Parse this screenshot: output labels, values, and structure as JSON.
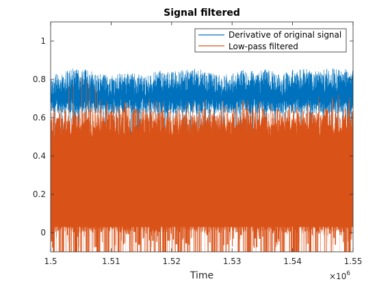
{
  "chart_data": {
    "type": "line",
    "title": "Signal filtered",
    "xlabel": "Time",
    "ylabel": "",
    "xlim": [
      1500000,
      1550000
    ],
    "ylim": [
      -0.1,
      1.1
    ],
    "x_ticks": [
      1500000,
      1510000,
      1520000,
      1530000,
      1540000,
      1550000
    ],
    "x_tick_labels": [
      "1.5",
      "1.51",
      "1.52",
      "1.53",
      "1.54",
      "1.55"
    ],
    "x_exponent_base": "×10",
    "x_exponent_power": "6",
    "y_ticks": [
      0,
      0.2,
      0.4,
      0.6,
      0.8,
      1
    ],
    "y_tick_labels": [
      "0",
      "0.2",
      "0.4",
      "0.6",
      "0.8",
      "1"
    ],
    "grid": false,
    "legend_position": "top-right",
    "series": [
      {
        "name": "Derivative of original signal",
        "color": "#0072BD",
        "description": "dense oscillating signal, upper envelope mostly 0.68–0.85, frequent dips down to ~0.15–0.35",
        "upper_envelope_x": [
          1500000,
          1502000,
          1504000,
          1506000,
          1508000,
          1510000,
          1512000,
          1514000,
          1516000,
          1518000,
          1520000,
          1522000,
          1524000,
          1526000,
          1528000,
          1530000,
          1532000,
          1534000,
          1536000,
          1538000,
          1540000,
          1542000,
          1544000,
          1546000,
          1548000,
          1550000
        ],
        "upper_envelope_y": [
          0.82,
          0.84,
          0.86,
          0.85,
          0.83,
          0.82,
          0.84,
          0.83,
          0.82,
          0.85,
          0.84,
          0.85,
          0.86,
          0.84,
          0.83,
          0.84,
          0.85,
          0.84,
          0.86,
          0.83,
          0.85,
          0.86,
          0.84,
          0.86,
          0.85,
          0.86
        ],
        "lower_bound": -0.1
      },
      {
        "name": "Low-pass filtered",
        "color": "#D95319",
        "description": "dense filtered signal filling roughly 0.02–0.65 with occasional spikes up to ~0.85 and dips to -0.1",
        "upper_envelope_x": [
          1500000,
          1505000,
          1510000,
          1515000,
          1520000,
          1525000,
          1530000,
          1535000,
          1540000,
          1545000,
          1550000
        ],
        "upper_envelope_y": [
          0.66,
          0.86,
          0.68,
          0.72,
          0.67,
          0.7,
          0.68,
          0.71,
          0.67,
          0.76,
          0.7
        ],
        "lower_bound": -0.1
      }
    ]
  }
}
